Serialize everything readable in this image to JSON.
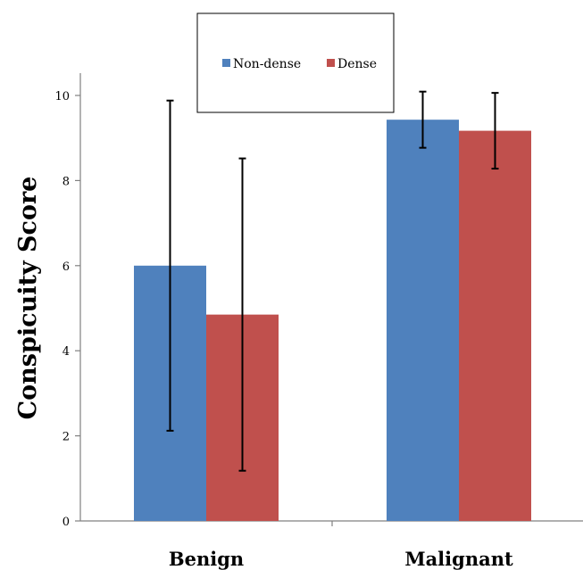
{
  "chart_data": {
    "type": "bar",
    "title": "",
    "xlabel": "",
    "ylabel": "Conspicuity Score",
    "categories": [
      "Benign",
      "Malignant"
    ],
    "series": [
      {
        "name": "Non-dense",
        "color": "#4f81bd",
        "values": [
          6.0,
          9.43
        ],
        "error_high": [
          9.88,
          10.09
        ],
        "error_low": [
          2.12,
          8.77
        ]
      },
      {
        "name": "Dense",
        "color": "#c0504d",
        "values": [
          4.85,
          9.17
        ],
        "error_high": [
          8.52,
          10.06
        ],
        "error_low": [
          1.18,
          8.28
        ]
      }
    ],
    "ylim": [
      0,
      10
    ],
    "yticks": [
      "0",
      "2",
      "4",
      "6",
      "8",
      "10"
    ],
    "grid": false,
    "legend_position": "top"
  }
}
